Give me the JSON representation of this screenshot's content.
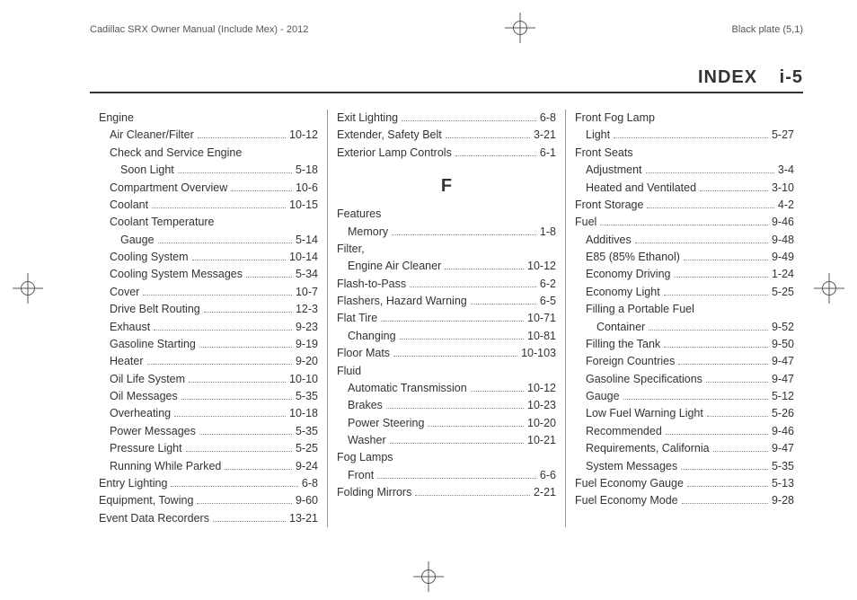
{
  "header": {
    "left": "Cadillac SRX Owner Manual (Include Mex) - 2012",
    "right": "Black plate (5,1)"
  },
  "section_title": "INDEX",
  "page_number": "i-5",
  "columns": [
    [
      {
        "label": "Engine",
        "indent": 0,
        "page": ""
      },
      {
        "label": "Air Cleaner/Filter",
        "indent": 1,
        "page": "10-12"
      },
      {
        "label": "Check and Service Engine",
        "indent": 1,
        "page": ""
      },
      {
        "label": "Soon Light",
        "indent": 2,
        "page": "5-18"
      },
      {
        "label": "Compartment Overview",
        "indent": 1,
        "page": "10-6"
      },
      {
        "label": "Coolant",
        "indent": 1,
        "page": "10-15"
      },
      {
        "label": "Coolant Temperature",
        "indent": 1,
        "page": ""
      },
      {
        "label": "Gauge",
        "indent": 2,
        "page": "5-14"
      },
      {
        "label": "Cooling System",
        "indent": 1,
        "page": "10-14"
      },
      {
        "label": "Cooling System Messages",
        "indent": 1,
        "page": "5-34"
      },
      {
        "label": "Cover",
        "indent": 1,
        "page": "10-7"
      },
      {
        "label": "Drive Belt Routing",
        "indent": 1,
        "page": "12-3"
      },
      {
        "label": "Exhaust",
        "indent": 1,
        "page": "9-23"
      },
      {
        "label": "Gasoline Starting",
        "indent": 1,
        "page": "9-19"
      },
      {
        "label": "Heater",
        "indent": 1,
        "page": "9-20"
      },
      {
        "label": "Oil Life System",
        "indent": 1,
        "page": "10-10"
      },
      {
        "label": "Oil Messages",
        "indent": 1,
        "page": "5-35"
      },
      {
        "label": "Overheating",
        "indent": 1,
        "page": "10-18"
      },
      {
        "label": "Power Messages",
        "indent": 1,
        "page": "5-35"
      },
      {
        "label": "Pressure Light",
        "indent": 1,
        "page": "5-25"
      },
      {
        "label": "Running While Parked",
        "indent": 1,
        "page": "9-24"
      },
      {
        "label": "Entry Lighting",
        "indent": 0,
        "page": "6-8"
      },
      {
        "label": "Equipment, Towing",
        "indent": 0,
        "page": "9-60"
      },
      {
        "label": "Event Data Recorders",
        "indent": 0,
        "page": "13-21"
      }
    ],
    [
      {
        "label": "Exit Lighting",
        "indent": 0,
        "page": "6-8"
      },
      {
        "label": "Extender, Safety Belt",
        "indent": 0,
        "page": "3-21"
      },
      {
        "label": "Exterior Lamp Controls",
        "indent": 0,
        "page": "6-1"
      },
      {
        "letter": "F"
      },
      {
        "label": "Features",
        "indent": 0,
        "page": ""
      },
      {
        "label": "Memory",
        "indent": 1,
        "page": "1-8"
      },
      {
        "label": "Filter,",
        "indent": 0,
        "page": ""
      },
      {
        "label": "Engine Air Cleaner",
        "indent": 1,
        "page": "10-12"
      },
      {
        "label": "Flash-to-Pass",
        "indent": 0,
        "page": "6-2"
      },
      {
        "label": "Flashers, Hazard Warning",
        "indent": 0,
        "page": "6-5"
      },
      {
        "label": "Flat Tire",
        "indent": 0,
        "page": "10-71"
      },
      {
        "label": "Changing",
        "indent": 1,
        "page": "10-81"
      },
      {
        "label": "Floor Mats",
        "indent": 0,
        "page": "10-103"
      },
      {
        "label": "Fluid",
        "indent": 0,
        "page": ""
      },
      {
        "label": "Automatic Transmission",
        "indent": 1,
        "page": "10-12"
      },
      {
        "label": "Brakes",
        "indent": 1,
        "page": "10-23"
      },
      {
        "label": "Power Steering",
        "indent": 1,
        "page": "10-20"
      },
      {
        "label": "Washer",
        "indent": 1,
        "page": "10-21"
      },
      {
        "label": "Fog Lamps",
        "indent": 0,
        "page": ""
      },
      {
        "label": "Front",
        "indent": 1,
        "page": "6-6"
      },
      {
        "label": "Folding Mirrors",
        "indent": 0,
        "page": "2-21"
      }
    ],
    [
      {
        "label": "Front Fog Lamp",
        "indent": 0,
        "page": ""
      },
      {
        "label": "Light",
        "indent": 1,
        "page": "5-27"
      },
      {
        "label": "Front Seats",
        "indent": 0,
        "page": ""
      },
      {
        "label": "Adjustment",
        "indent": 1,
        "page": "3-4"
      },
      {
        "label": "Heated and Ventilated",
        "indent": 1,
        "page": "3-10"
      },
      {
        "label": "Front Storage",
        "indent": 0,
        "page": "4-2"
      },
      {
        "label": "Fuel",
        "indent": 0,
        "page": "9-46"
      },
      {
        "label": "Additives",
        "indent": 1,
        "page": "9-48"
      },
      {
        "label": "E85 (85% Ethanol)",
        "indent": 1,
        "page": "9-49"
      },
      {
        "label": "Economy Driving",
        "indent": 1,
        "page": "1-24"
      },
      {
        "label": "Economy Light",
        "indent": 1,
        "page": "5-25"
      },
      {
        "label": "Filling a Portable Fuel",
        "indent": 1,
        "page": ""
      },
      {
        "label": "Container",
        "indent": 2,
        "page": "9-52"
      },
      {
        "label": "Filling the Tank",
        "indent": 1,
        "page": "9-50"
      },
      {
        "label": "Foreign Countries",
        "indent": 1,
        "page": "9-47"
      },
      {
        "label": "Gasoline Specifications",
        "indent": 1,
        "page": "9-47"
      },
      {
        "label": "Gauge",
        "indent": 1,
        "page": "5-12"
      },
      {
        "label": "Low Fuel Warning Light",
        "indent": 1,
        "page": "5-26"
      },
      {
        "label": "Recommended",
        "indent": 1,
        "page": "9-46"
      },
      {
        "label": "Requirements, California",
        "indent": 1,
        "page": "9-47"
      },
      {
        "label": "System Messages",
        "indent": 1,
        "page": "5-35"
      },
      {
        "label": "Fuel Economy Gauge",
        "indent": 0,
        "page": "5-13"
      },
      {
        "label": "Fuel Economy Mode",
        "indent": 0,
        "page": "9-28"
      }
    ]
  ]
}
